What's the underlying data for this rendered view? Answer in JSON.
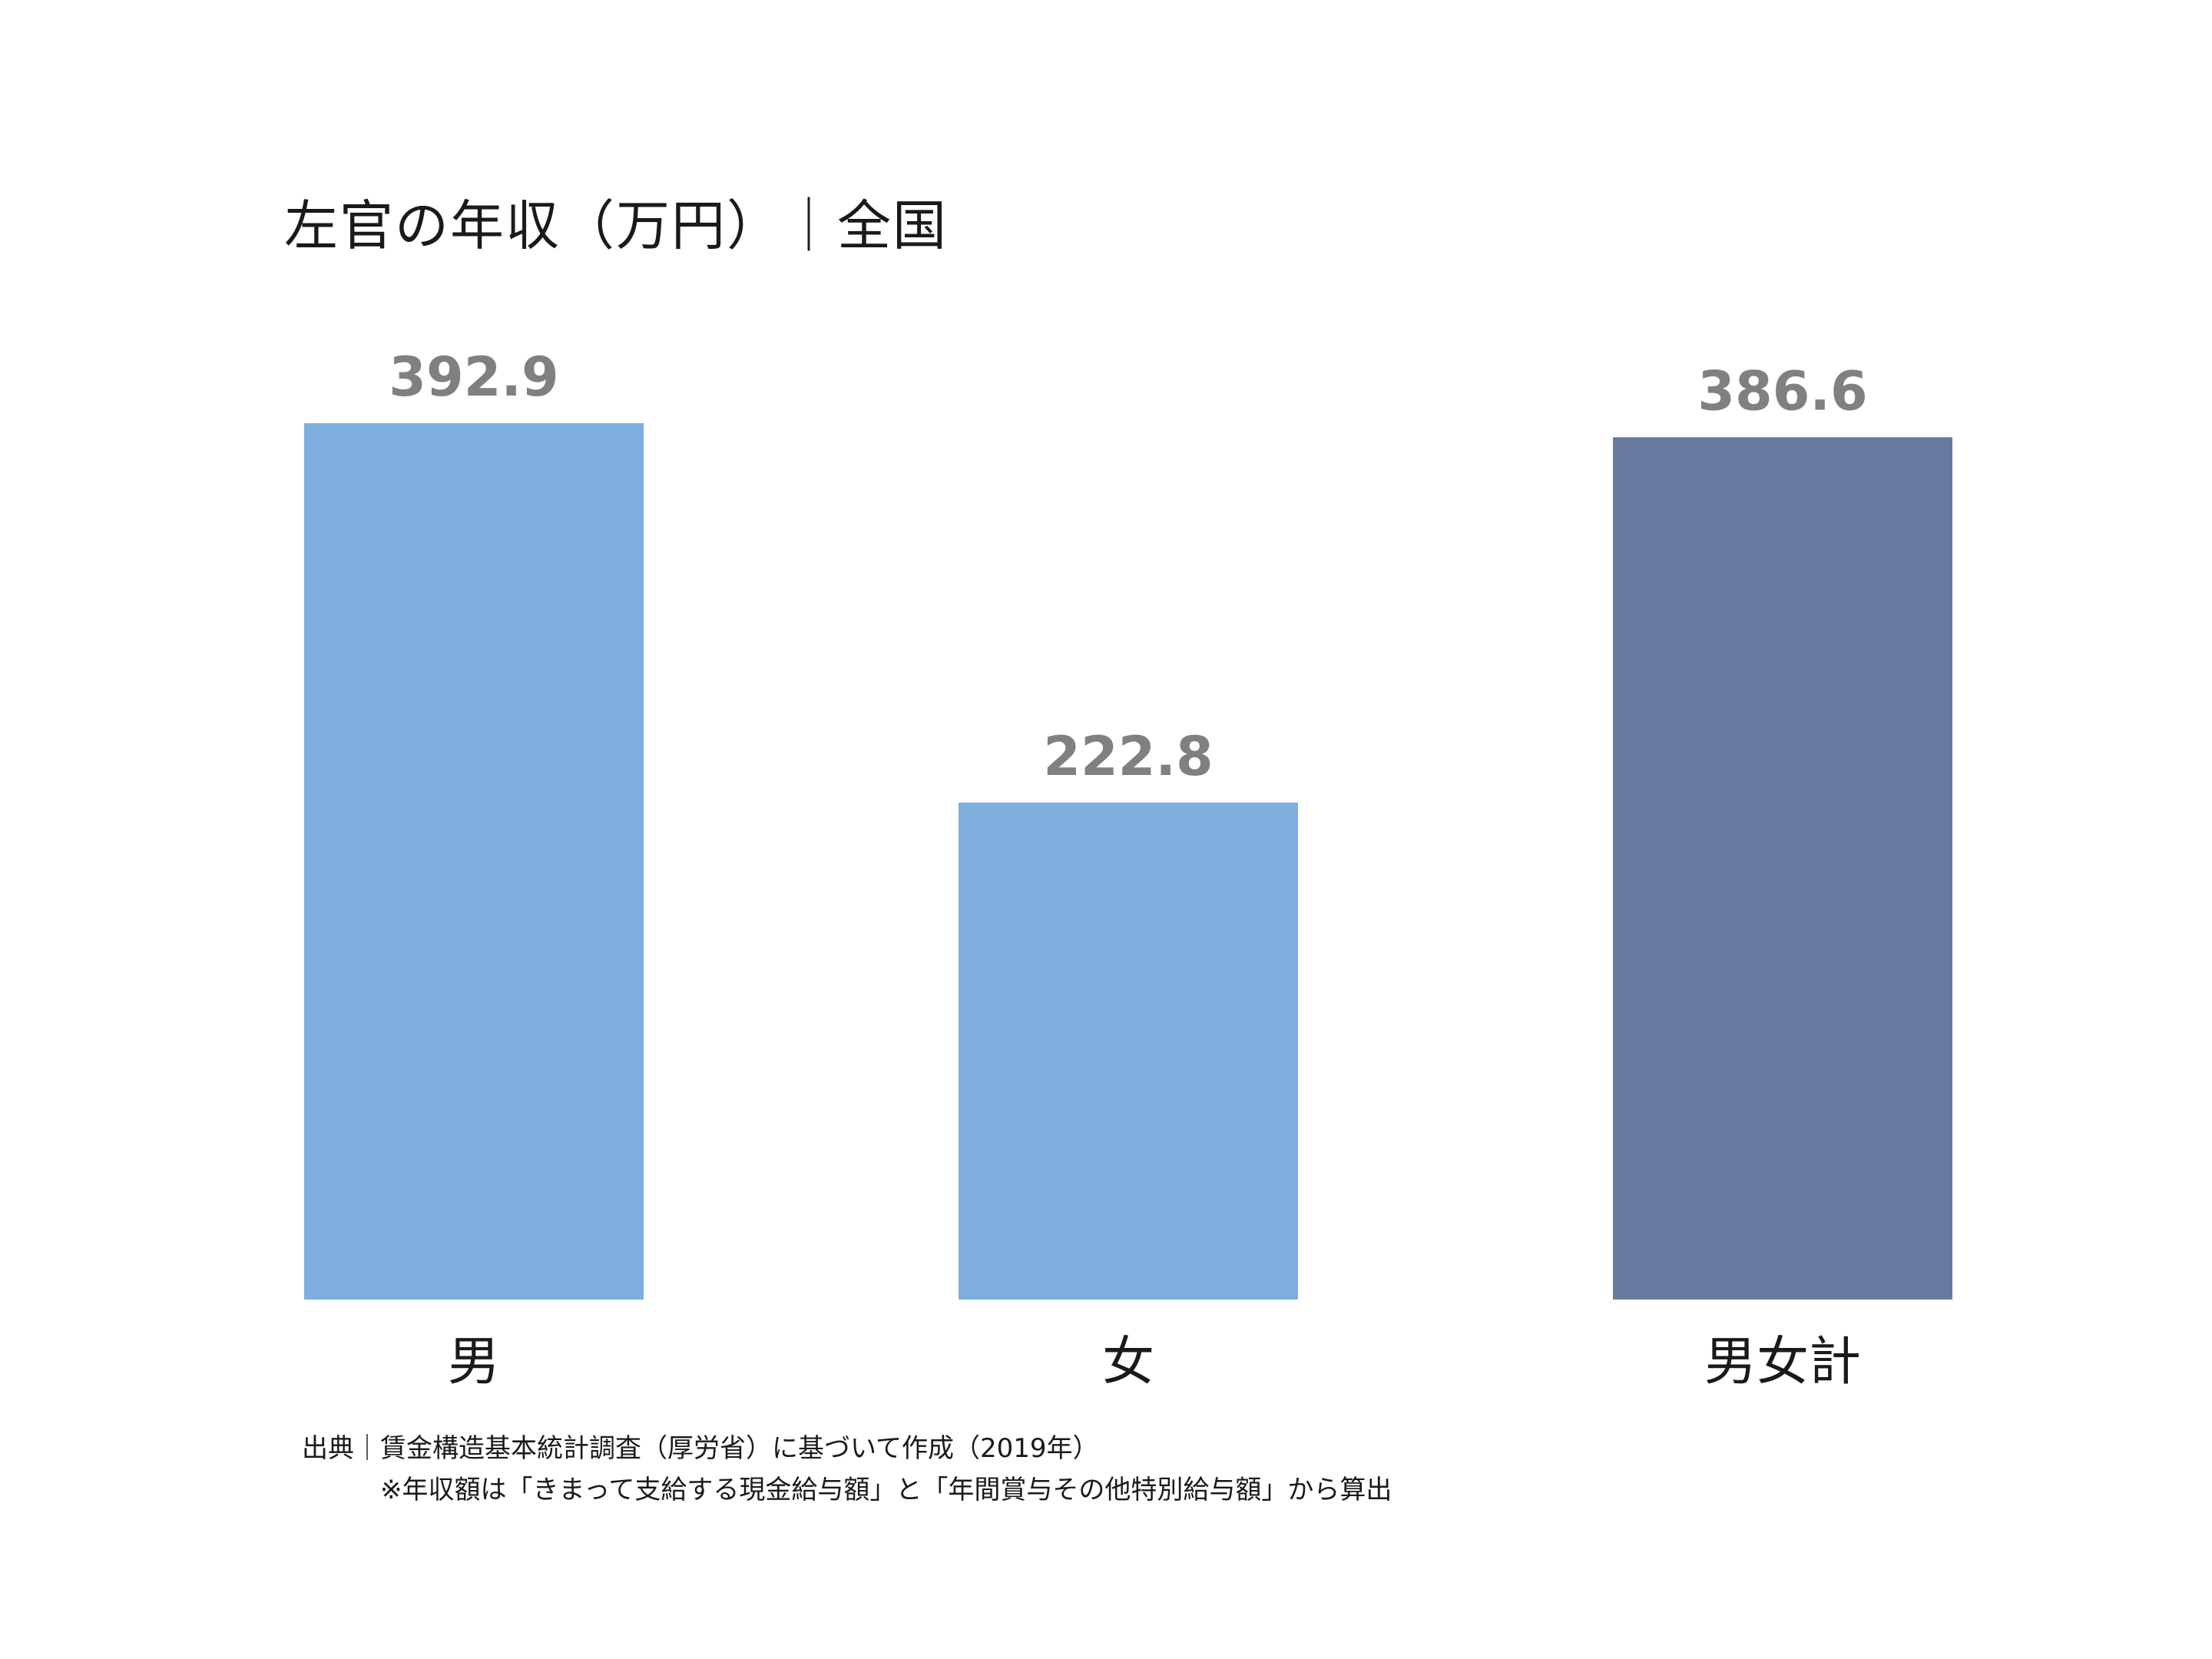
{
  "chart_data": {
    "type": "bar",
    "title": "左官の年収（万円）｜全国",
    "categories": [
      "男",
      "女",
      "男女計"
    ],
    "values": [
      392.9,
      222.8,
      386.6
    ],
    "value_labels": [
      "392.9",
      "222.8",
      "386.6"
    ],
    "colors": [
      "#7DAEDD",
      "#7DAEDD",
      "#67799F"
    ],
    "xlabel": "",
    "ylabel": "",
    "ylim": [
      0,
      392.9
    ],
    "grid": false,
    "legend": "none"
  },
  "source": "出典｜賃金構造基本統計調査（厚労省）に基づいて作成（2019年）",
  "note": "※年収額は「きまって支給する現金給与額」と「年間賞与その他特別給与額」から算出"
}
